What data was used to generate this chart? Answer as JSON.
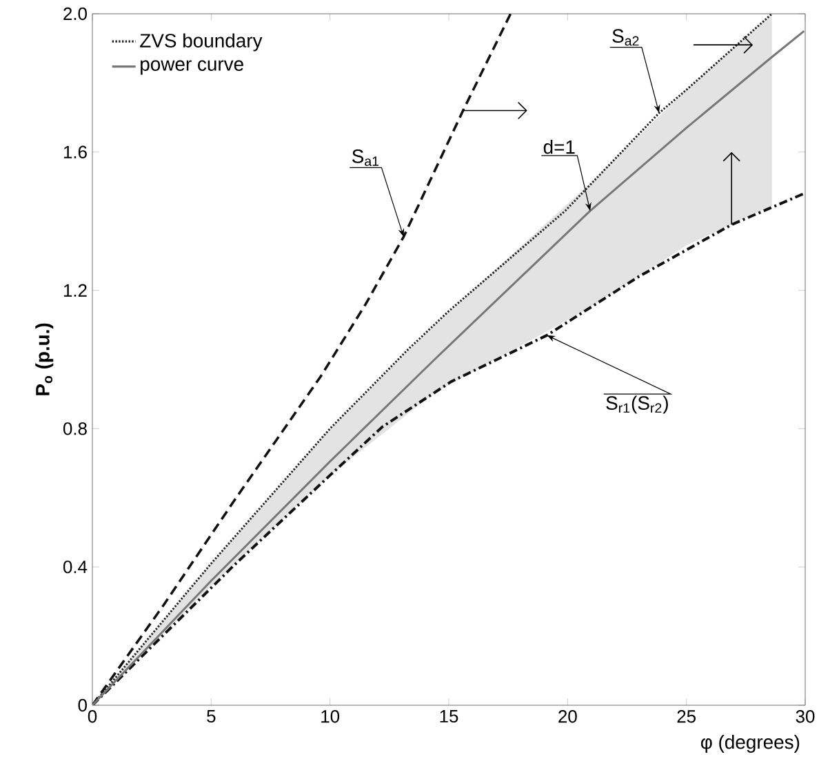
{
  "chart_data": {
    "type": "line",
    "xlabel": "φ (degrees)",
    "ylabel": "P$_{o}$ (p.u.)",
    "xlim": [
      0,
      30
    ],
    "ylim": [
      0,
      2
    ],
    "xticks": [
      0,
      5,
      10,
      15,
      20,
      25,
      30
    ],
    "yticks": [
      0,
      0.4,
      0.8,
      1.2,
      1.6,
      {
        "value": 2,
        "label": "2.0"
      }
    ],
    "grid": false,
    "legend": "top left",
    "marker": "none",
    "series": [
      {
        "color": "#111111",
        "line_style": "dashed",
        "x": [
          0,
          3,
          6,
          9.6,
          11.5,
          13.1,
          15.6,
          17.6
        ],
        "values": [
          0,
          0.29,
          0.595,
          0.95,
          1.16,
          1.355,
          1.72,
          2.0
        ]
      },
      {
        "name": "ZVS boundary",
        "color": "#222222",
        "line_style": "dotted",
        "x": [
          0,
          5,
          10,
          13.3,
          15,
          19.9,
          23.85,
          25,
          28.6
        ],
        "values": [
          0,
          0.41,
          0.8,
          1.03,
          1.14,
          1.43,
          1.713,
          1.78,
          2.0
        ]
      },
      {
        "color": "#111111",
        "line_style": "dashdot",
        "x": [
          0,
          5.98,
          10,
          12.2,
          15.1,
          19.13,
          23,
          26.9,
          29.95
        ],
        "values": [
          0,
          0.406,
          0.665,
          0.805,
          0.936,
          1.07,
          1.24,
          1.39,
          1.48
        ]
      },
      {
        "name": "power curve",
        "color": "#777777",
        "line_style": "solid",
        "x": [
          0,
          5,
          10,
          14.4,
          20.95,
          25,
          28.6,
          29.95
        ],
        "values": [
          0,
          0.36,
          0.705,
          1.0,
          1.43,
          1.67,
          1.875,
          1.95
        ],
        "lower": [
          0,
          0.345,
          0.665,
          0.904,
          1.15,
          1.33,
          1.445,
          null
        ],
        "upper": [
          0,
          0.41,
          0.8,
          1.1,
          1.51,
          1.78,
          2.0,
          null
        ]
      }
    ],
    "annotations": [
      {
        "text": "S$_{a1}$",
        "x": 13.1,
        "y": 1.355
      },
      {
        "text": "S$_{a2}$",
        "x": 23.85,
        "y": 1.713
      },
      {
        "text": "d=1",
        "x": 20.95,
        "y": 1.43
      },
      {
        "text": "S$_{r1}$(S$_{r2}$)",
        "x": 19.13,
        "y": 1.07
      }
    ]
  }
}
